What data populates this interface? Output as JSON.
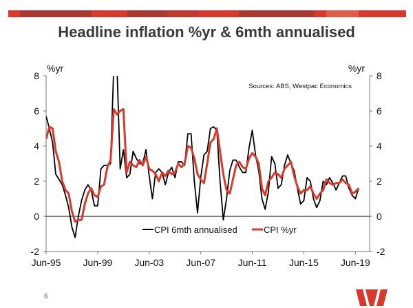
{
  "slide": {
    "title": "Headline inflation %yr & 6mth annualised",
    "page_number": "6",
    "logo_text": "Westpac",
    "brand_color": "#d9392b"
  },
  "chart_data": {
    "type": "line",
    "title": "Headline inflation %yr & 6mth annualised",
    "source_note": "Sources: ABS, Westpac Economics",
    "ylabel_left": "%yr",
    "ylabel_right": "%yr",
    "ylim": [
      -2,
      8
    ],
    "yticks": [
      "8",
      "6",
      "4",
      "2",
      "0",
      "-2"
    ],
    "ytick_values": [
      8,
      6,
      4,
      2,
      0,
      -2
    ],
    "xlim": [
      "Jun-95",
      "Dec-19"
    ],
    "xticks": [
      "Jun-95",
      "Jun-99",
      "Jun-03",
      "Jun-07",
      "Jun-11",
      "Jun-15",
      "Jun-19"
    ],
    "x_start": "Jun-95",
    "x_frequency": "quarterly",
    "grid": false,
    "legend_position": "bottom-center",
    "series": [
      {
        "name": "CPI 6mth annualised",
        "color": "#000000",
        "values": [
          5.7,
          5.0,
          4.2,
          2.4,
          2.1,
          1.8,
          1.2,
          0.5,
          -0.6,
          -1.2,
          0.0,
          0.9,
          1.5,
          1.8,
          1.5,
          0.6,
          0.6,
          2.7,
          2.9,
          2.9,
          3.0,
          8.5,
          8.5,
          2.7,
          3.8,
          2.2,
          2.4,
          3.7,
          3.3,
          3.0,
          3.0,
          3.8,
          2.3,
          1.0,
          2.5,
          2.7,
          2.5,
          1.8,
          2.5,
          2.8,
          2.2,
          3.1,
          3.1,
          2.9,
          4.7,
          4.7,
          2.0,
          0.2,
          2.2,
          3.5,
          3.7,
          5.0,
          5.1,
          4.9,
          2.0,
          -0.2,
          1.0,
          2.6,
          3.2,
          3.2,
          2.8,
          2.5,
          2.5,
          3.9,
          4.9,
          3.5,
          2.6,
          1.0,
          0.4,
          1.4,
          3.4,
          3.0,
          1.6,
          1.8,
          2.9,
          3.5,
          3.0,
          2.6,
          1.6,
          0.7,
          0.9,
          2.2,
          2.0,
          1.0,
          0.5,
          0.9,
          2.0,
          1.8,
          2.2,
          1.9,
          1.5,
          1.9,
          2.3,
          2.3,
          1.6,
          1.2,
          1.0,
          1.6
        ]
      },
      {
        "name": "CPI %yr",
        "color": "#d9392b",
        "values": [
          4.4,
          5.1,
          5.0,
          3.7,
          3.1,
          2.0,
          1.5,
          1.3,
          0.3,
          -0.3,
          -0.2,
          -0.2,
          0.7,
          1.3,
          1.6,
          1.2,
          1.1,
          1.7,
          1.8,
          2.8,
          3.2,
          6.1,
          5.8,
          6.0,
          6.1,
          2.5,
          3.1,
          2.9,
          2.8,
          3.2,
          2.9,
          3.4,
          2.7,
          2.6,
          2.4,
          2.0,
          2.5,
          2.3,
          2.6,
          2.4,
          2.5,
          3.0,
          2.8,
          3.0,
          4.0,
          3.9,
          3.3,
          2.4,
          2.1,
          1.9,
          3.0,
          4.2,
          4.4,
          5.0,
          3.7,
          2.4,
          1.5,
          1.3,
          2.1,
          2.9,
          3.1,
          2.8,
          2.7,
          3.3,
          3.6,
          3.4,
          3.0,
          1.6,
          1.2,
          2.0,
          2.2,
          2.5,
          2.4,
          2.2,
          2.7,
          2.9,
          3.1,
          2.3,
          1.7,
          1.3,
          1.5,
          1.5,
          1.7,
          1.3,
          1.0,
          1.3,
          1.5,
          2.1,
          1.9,
          1.8,
          1.9,
          1.9,
          2.1,
          1.9,
          1.8,
          1.3,
          1.4,
          1.6
        ]
      }
    ]
  }
}
